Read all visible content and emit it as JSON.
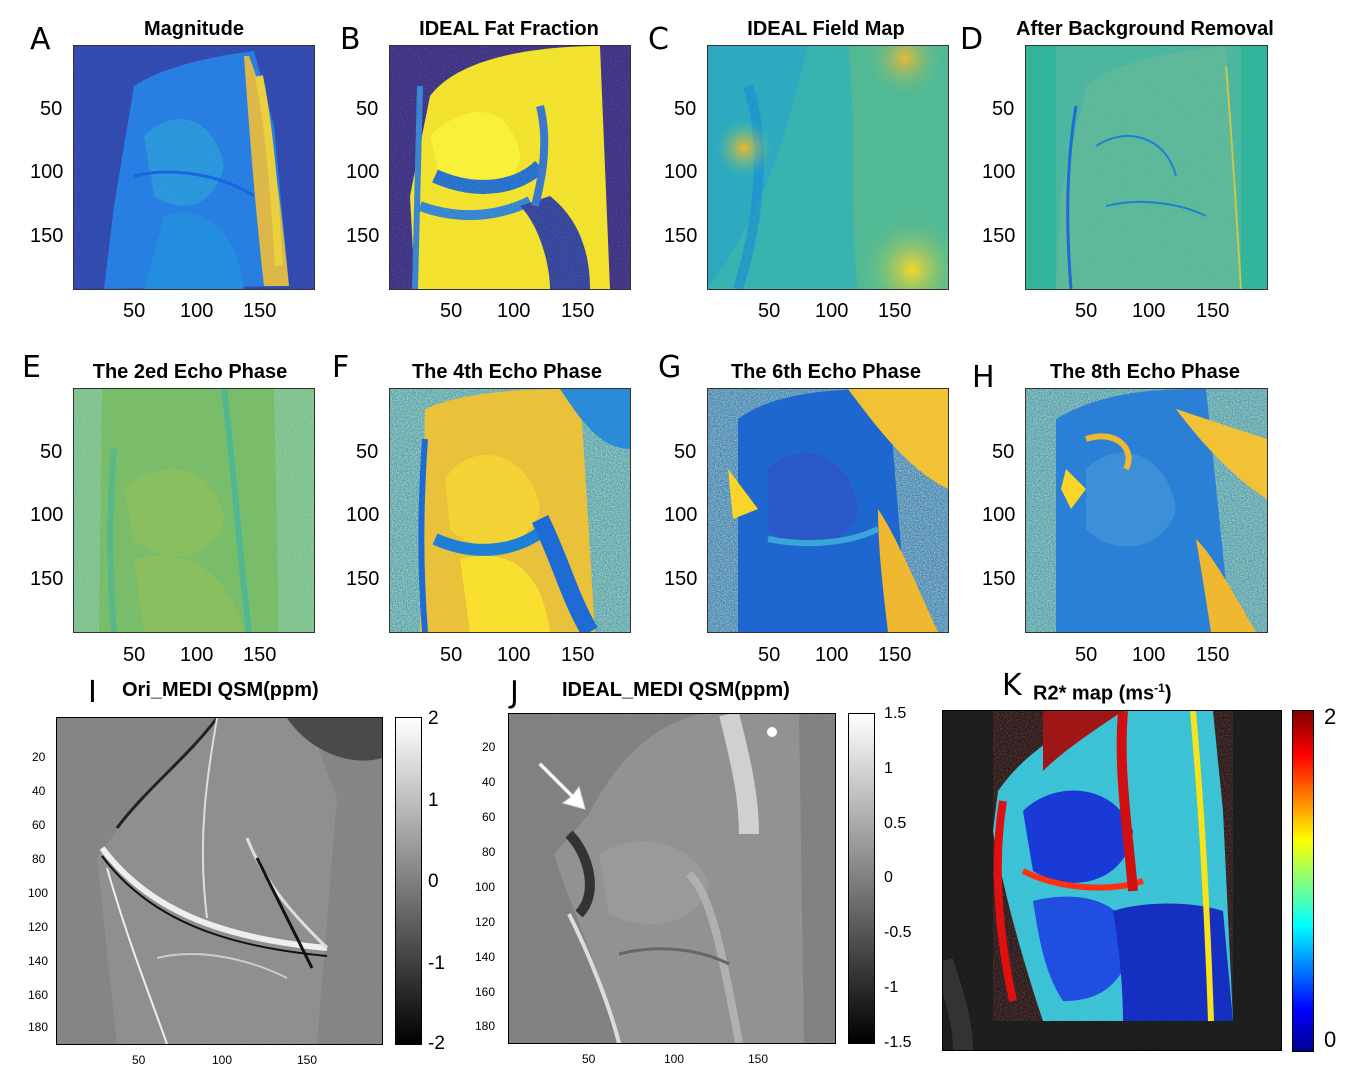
{
  "panels": {
    "A": {
      "letter": "A",
      "title": "Magnitude"
    },
    "B": {
      "letter": "B",
      "title": "IDEAL Fat Fraction"
    },
    "C": {
      "letter": "C",
      "title": "IDEAL Field Map"
    },
    "D": {
      "letter": "D",
      "title": "After Background Removal"
    },
    "E": {
      "letter": "E",
      "title": "The 2ed Echo Phase"
    },
    "F": {
      "letter": "F",
      "title": "The 4th Echo Phase"
    },
    "G": {
      "letter": "G",
      "title": "The 6th Echo Phase"
    },
    "H": {
      "letter": "H",
      "title": "The 8th Echo Phase"
    },
    "I": {
      "letter": "I",
      "title": "Ori_MEDI QSM(ppm)"
    },
    "J": {
      "letter": "J",
      "title": "IDEAL_MEDI QSM(ppm)"
    },
    "K": {
      "letter": "K",
      "title": "R2* map (ms",
      "title_sup": "-1",
      "title_end": ")"
    }
  },
  "axes": {
    "top_y_ticks": [
      "50",
      "100",
      "150"
    ],
    "top_x_ticks": [
      "50",
      "100",
      "150"
    ],
    "qsm_y_ticks": [
      "20",
      "40",
      "60",
      "80",
      "100",
      "120",
      "140",
      "160",
      "180"
    ],
    "qsm_x_ticks": [
      "50",
      "100",
      "150"
    ]
  },
  "colorbars": {
    "I": [
      "2",
      "1",
      "0",
      "-1",
      "-2"
    ],
    "J": [
      "1.5",
      "1",
      "0.5",
      "0",
      "-0.5",
      "-1",
      "-1.5"
    ],
    "K": [
      "2",
      "0"
    ]
  },
  "colors": {
    "parula_dark": "#352a87",
    "parula_blue": "#1e6bd6",
    "parula_teal": "#2bb5a5",
    "parula_green": "#7fbf5a",
    "parula_yellow": "#f9fb0e",
    "parula_orange": "#f0b830"
  },
  "icons": {
    "arrow": "white-arrow-icon"
  }
}
